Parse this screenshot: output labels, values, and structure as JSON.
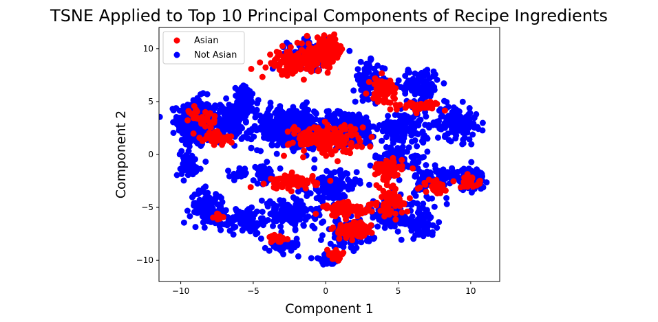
{
  "chart_data": {
    "type": "scatter",
    "title": "TSNE Applied to Top 10 Principal Components of Recipe Ingredients",
    "xlabel": "Component 1",
    "ylabel": "Component 2",
    "xlim": [
      -11.5,
      12
    ],
    "ylim": [
      -12,
      12
    ],
    "xticks": [
      -10,
      -5,
      0,
      5,
      10
    ],
    "yticks": [
      -10,
      -5,
      0,
      5,
      10
    ],
    "xtick_labels": [
      "−10",
      "−5",
      "0",
      "5",
      "10"
    ],
    "ytick_labels": [
      "−10",
      "−5",
      "0",
      "5",
      "10"
    ],
    "grid": false,
    "legend_position": "top-left",
    "series": [
      {
        "name": "Asian",
        "color": "#ff0000",
        "clusters": [
          {
            "center": [
              0.0,
              9.8
            ],
            "spread": [
              1.2,
              1.1
            ],
            "count": 140
          },
          {
            "center": [
              -2.2,
              8.6
            ],
            "spread": [
              1.6,
              1.0
            ],
            "count": 110
          },
          {
            "center": [
              4.0,
              6.2
            ],
            "spread": [
              0.8,
              1.0
            ],
            "count": 70
          },
          {
            "center": [
              6.5,
              4.6
            ],
            "spread": [
              1.2,
              0.4
            ],
            "count": 50
          },
          {
            "center": [
              0.0,
              1.5
            ],
            "spread": [
              2.2,
              1.2
            ],
            "count": 170
          },
          {
            "center": [
              -7.5,
              1.5
            ],
            "spread": [
              0.9,
              0.6
            ],
            "count": 50
          },
          {
            "center": [
              -8.5,
              3.5
            ],
            "spread": [
              0.8,
              1.0
            ],
            "count": 30
          },
          {
            "center": [
              -2.2,
              -2.6
            ],
            "spread": [
              1.5,
              0.6
            ],
            "count": 80
          },
          {
            "center": [
              1.5,
              -5.2
            ],
            "spread": [
              1.5,
              0.6
            ],
            "count": 80
          },
          {
            "center": [
              1.8,
              -7.2
            ],
            "spread": [
              1.2,
              0.7
            ],
            "count": 70
          },
          {
            "center": [
              4.5,
              -4.5
            ],
            "spread": [
              0.8,
              1.2
            ],
            "count": 60
          },
          {
            "center": [
              4.2,
              -1.5
            ],
            "spread": [
              1.0,
              1.0
            ],
            "count": 60
          },
          {
            "center": [
              10.0,
              -2.6
            ],
            "spread": [
              0.7,
              0.5
            ],
            "count": 30
          },
          {
            "center": [
              7.5,
              -3.0
            ],
            "spread": [
              0.8,
              0.6
            ],
            "count": 30
          },
          {
            "center": [
              0.7,
              -9.5
            ],
            "spread": [
              0.6,
              0.6
            ],
            "count": 20
          },
          {
            "center": [
              -3.3,
              -8.0
            ],
            "spread": [
              0.6,
              0.5
            ],
            "count": 20
          },
          {
            "center": [
              -7.4,
              -6.0
            ],
            "spread": [
              0.4,
              0.4
            ],
            "count": 10
          }
        ]
      },
      {
        "name": "Not Asian",
        "color": "#0000ff",
        "clusters": [
          {
            "center": [
              -9.0,
              3.0
            ],
            "spread": [
              1.1,
              2.1
            ],
            "count": 320
          },
          {
            "center": [
              -6.8,
              3.2
            ],
            "spread": [
              1.0,
              1.5
            ],
            "count": 130
          },
          {
            "center": [
              -5.5,
              5.0
            ],
            "spread": [
              0.8,
              1.3
            ],
            "count": 80
          },
          {
            "center": [
              -2.5,
              2.5
            ],
            "spread": [
              2.3,
              1.8
            ],
            "count": 360
          },
          {
            "center": [
              1.5,
              2.4
            ],
            "spread": [
              2.0,
              1.5
            ],
            "count": 260
          },
          {
            "center": [
              -1.0,
              9.5
            ],
            "spread": [
              1.5,
              1.2
            ],
            "count": 140
          },
          {
            "center": [
              3.0,
              7.0
            ],
            "spread": [
              1.0,
              1.5
            ],
            "count": 90
          },
          {
            "center": [
              6.5,
              6.5
            ],
            "spread": [
              1.2,
              1.5
            ],
            "count": 110
          },
          {
            "center": [
              5.5,
              2.5
            ],
            "spread": [
              1.5,
              1.5
            ],
            "count": 130
          },
          {
            "center": [
              9.0,
              3.0
            ],
            "spread": [
              1.3,
              1.5
            ],
            "count": 130
          },
          {
            "center": [
              10.0,
              -2.3
            ],
            "spread": [
              0.9,
              1.0
            ],
            "count": 90
          },
          {
            "center": [
              7.5,
              -2.5
            ],
            "spread": [
              1.2,
              1.5
            ],
            "count": 110
          },
          {
            "center": [
              5.0,
              -0.5
            ],
            "spread": [
              1.5,
              1.2
            ],
            "count": 90
          },
          {
            "center": [
              -9.5,
              -1.0
            ],
            "spread": [
              0.8,
              1.0
            ],
            "count": 60
          },
          {
            "center": [
              -8.0,
              -5.0
            ],
            "spread": [
              1.2,
              1.5
            ],
            "count": 100
          },
          {
            "center": [
              -5.5,
              -6.2
            ],
            "spread": [
              1.3,
              1.2
            ],
            "count": 90
          },
          {
            "center": [
              -2.5,
              -5.5
            ],
            "spread": [
              1.6,
              1.3
            ],
            "count": 140
          },
          {
            "center": [
              0.5,
              -3.0
            ],
            "spread": [
              1.5,
              1.3
            ],
            "count": 130
          },
          {
            "center": [
              1.5,
              -7.5
            ],
            "spread": [
              1.5,
              1.2
            ],
            "count": 120
          },
          {
            "center": [
              4.5,
              -5.5
            ],
            "spread": [
              1.5,
              1.5
            ],
            "count": 120
          },
          {
            "center": [
              6.5,
              -6.5
            ],
            "spread": [
              1.0,
              1.0
            ],
            "count": 70
          },
          {
            "center": [
              -2.8,
              -8.5
            ],
            "spread": [
              1.0,
              0.6
            ],
            "count": 60
          },
          {
            "center": [
              0.0,
              -10.0
            ],
            "spread": [
              0.8,
              0.5
            ],
            "count": 30
          },
          {
            "center": [
              -4.2,
              -2.0
            ],
            "spread": [
              0.7,
              0.8
            ],
            "count": 40
          },
          {
            "center": [
              -6.0,
              -1.8
            ],
            "spread": [
              0.5,
              0.5
            ],
            "count": 20
          }
        ]
      }
    ]
  }
}
